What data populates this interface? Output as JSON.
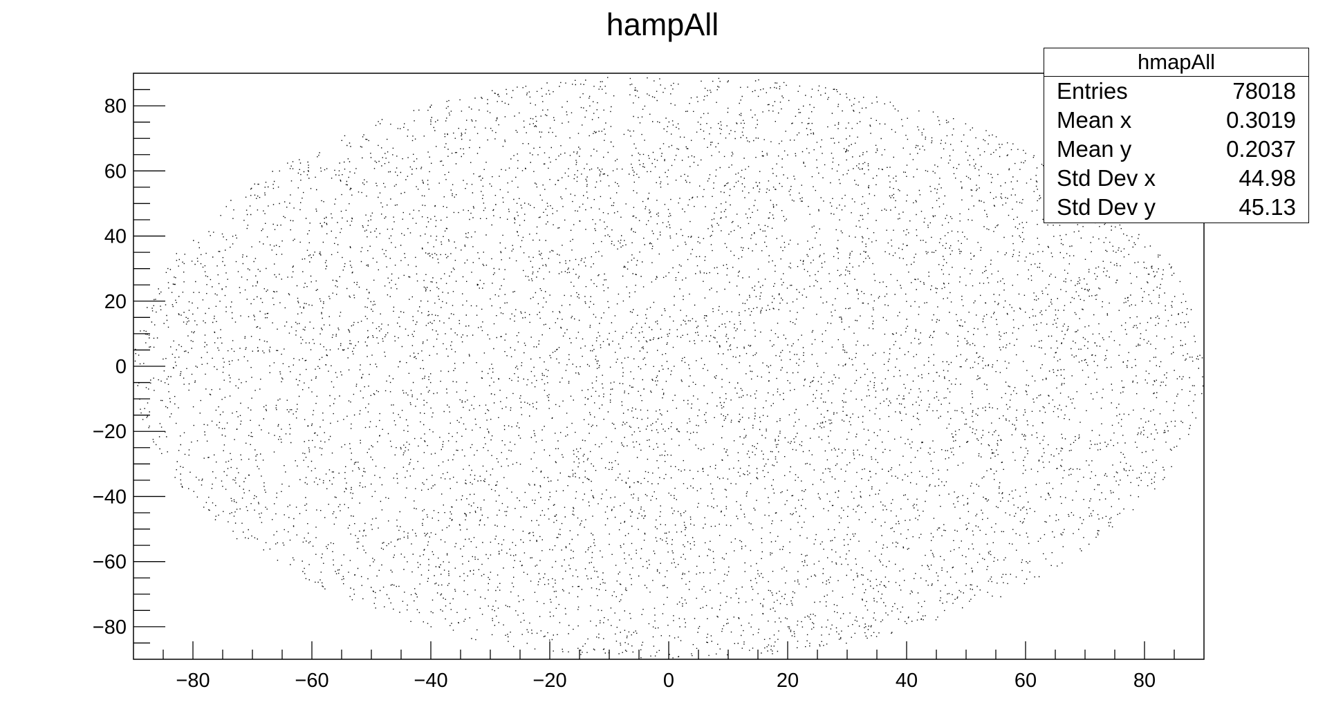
{
  "chart_data": {
    "type": "scatter",
    "title": "hampAll",
    "xlabel": "",
    "ylabel": "",
    "xlim": [
      -90,
      90
    ],
    "ylim": [
      -90,
      90
    ],
    "x_ticks": [
      -80,
      -60,
      -40,
      -20,
      0,
      20,
      40,
      60,
      80
    ],
    "y_ticks": [
      -80,
      -60,
      -40,
      -20,
      0,
      20,
      40,
      60,
      80
    ],
    "distribution": "uniform disk of radius 90 centered at (0, 0)",
    "stats_box": {
      "name": "hmapAll",
      "rows": [
        {
          "label": "Entries",
          "value": "78018"
        },
        {
          "label": "Mean x",
          "value": "0.3019"
        },
        {
          "label": "Mean y",
          "value": "0.2037"
        },
        {
          "label": "Std Dev x",
          "value": "44.98"
        },
        {
          "label": "Std Dev y",
          "value": "45.13"
        }
      ]
    },
    "point_color": "#000000",
    "grid": false
  }
}
